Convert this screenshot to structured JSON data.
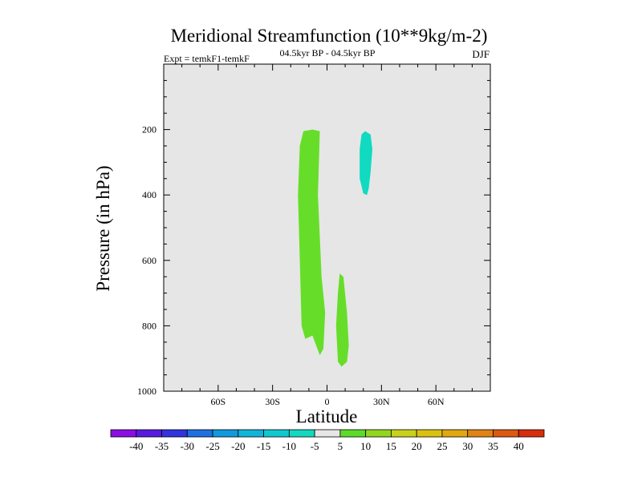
{
  "chart_data": {
    "type": "heatmap",
    "title": "Meridional Streamfunction (10**9kg/m-2)",
    "left_label": "Expt = temkF1-temkF",
    "center_label": "04.5kyr BP - 04.5kyr BP",
    "right_label": "DJF",
    "xlabel": "Latitude",
    "ylabel": "Pressure (in hPa)",
    "xlim": [
      -90,
      90
    ],
    "ylim": [
      1000,
      0
    ],
    "x_ticks": [
      {
        "value": -60,
        "label": "60S"
      },
      {
        "value": -30,
        "label": "30S"
      },
      {
        "value": 0,
        "label": "0"
      },
      {
        "value": 30,
        "label": "30N"
      },
      {
        "value": 60,
        "label": "60N"
      }
    ],
    "y_ticks": [
      {
        "value": 200,
        "label": "200"
      },
      {
        "value": 400,
        "label": "400"
      },
      {
        "value": 600,
        "label": "600"
      },
      {
        "value": 800,
        "label": "800"
      },
      {
        "value": 1000,
        "label": "1000"
      }
    ],
    "colorbar": {
      "labels": [
        "-40",
        "-35",
        "-30",
        "-25",
        "-20",
        "-15",
        "-10",
        "-5",
        "5",
        "10",
        "15",
        "20",
        "25",
        "30",
        "35",
        "40"
      ],
      "colors": [
        "#8b0fe3",
        "#5a1ae0",
        "#3333e0",
        "#1f6fe0",
        "#1199dd",
        "#10b5d8",
        "#11c8cf",
        "#13d8c0",
        "#e6e6e6",
        "#5ddb2b",
        "#93d520",
        "#c8d21a",
        "#dcc210",
        "#e0a812",
        "#df8414",
        "#dc5a10",
        "#d82e0c"
      ]
    },
    "regions": [
      {
        "name": "region-positive-5-10-large",
        "level": "5 to 10",
        "color": "#66de29",
        "points": [
          [
            -13,
            205
          ],
          [
            -8,
            200
          ],
          [
            -4,
            205
          ],
          [
            -5,
            400
          ],
          [
            -3,
            650
          ],
          [
            -1,
            760
          ],
          [
            -2,
            870
          ],
          [
            -4,
            890
          ],
          [
            -8,
            830
          ],
          [
            -12,
            840
          ],
          [
            -14,
            800
          ],
          [
            -15,
            600
          ],
          [
            -16,
            400
          ],
          [
            -15,
            250
          ]
        ]
      },
      {
        "name": "region-positive-5-10-small",
        "level": "5 to 10",
        "color": "#66de29",
        "points": [
          [
            7,
            640
          ],
          [
            9,
            650
          ],
          [
            11,
            760
          ],
          [
            12,
            860
          ],
          [
            11,
            910
          ],
          [
            8,
            925
          ],
          [
            6,
            910
          ],
          [
            5,
            800
          ],
          [
            6,
            700
          ]
        ]
      },
      {
        "name": "region-negative-10-5",
        "level": "-10 to -5",
        "color": "#10dac0",
        "points": [
          [
            21,
            205
          ],
          [
            24,
            215
          ],
          [
            25,
            260
          ],
          [
            24,
            330
          ],
          [
            23,
            380
          ],
          [
            22,
            400
          ],
          [
            20,
            395
          ],
          [
            18,
            350
          ],
          [
            18,
            260
          ],
          [
            19,
            215
          ]
        ]
      }
    ]
  }
}
